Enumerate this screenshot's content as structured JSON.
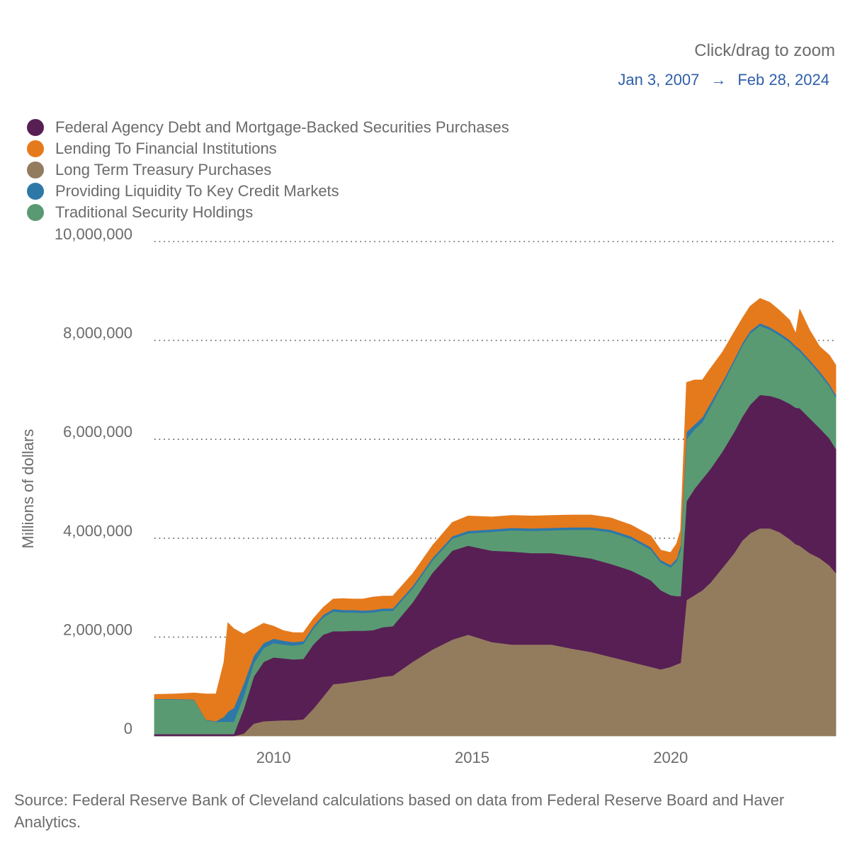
{
  "header": {
    "zoom_hint": "Click/drag to zoom",
    "range_start": "Jan 3, 2007",
    "range_arrow": "→",
    "range_end": "Feb 28, 2024"
  },
  "y_axis_title": "Millions of dollars",
  "source": "Source: Federal Reserve Bank of Cleveland calculations based on data from Federal Reserve Board and Haver Analytics.",
  "colors": {
    "agency_mbs": "#581f54",
    "lending": "#e57a1d",
    "treasury": "#937c5e",
    "liquidity": "#2e78a8",
    "traditional": "#5a9a72",
    "gridline": "#555555",
    "axis_text": "#6b6b6b",
    "range_text": "#2f5fa7"
  },
  "chart_data": {
    "type": "area",
    "stacked": true,
    "title": "",
    "xlabel": "",
    "ylabel": "Millions of dollars",
    "xlim": [
      2007.0,
      2024.16
    ],
    "ylim": [
      0,
      10000000
    ],
    "x_ticks": [
      2010,
      2015,
      2020
    ],
    "x_tick_labels": [
      "2010",
      "2015",
      "2020"
    ],
    "y_ticks": [
      0,
      2000000,
      4000000,
      6000000,
      8000000,
      10000000
    ],
    "y_tick_labels": [
      "0",
      "2,000,000",
      "4,000,000",
      "6,000,000",
      "8,000,000",
      "10,000,000"
    ],
    "grid": "horizontal dotted",
    "legend_position": "top-left",
    "stack_order": [
      "Long Term Treasury Purchases",
      "Federal Agency Debt and Mortgage-Backed Securities Purchases",
      "Traditional Security Holdings",
      "Providing Liquidity To Key Credit Markets",
      "Lending To Financial Institutions"
    ],
    "legend": [
      {
        "name": "Federal Agency Debt and Mortgage-Backed Securities Purchases",
        "color": "#581f54"
      },
      {
        "name": "Lending To Financial Institutions",
        "color": "#e57a1d"
      },
      {
        "name": "Long Term Treasury Purchases",
        "color": "#937c5e"
      },
      {
        "name": "Providing Liquidity To Key Credit Markets",
        "color": "#2e78a8"
      },
      {
        "name": "Traditional Security Holdings",
        "color": "#5a9a72"
      }
    ],
    "x": [
      2007.0,
      2007.5,
      2008.0,
      2008.3,
      2008.55,
      2008.75,
      2008.85,
      2009.0,
      2009.25,
      2009.5,
      2009.75,
      2010.0,
      2010.25,
      2010.5,
      2010.75,
      2011.0,
      2011.25,
      2011.5,
      2011.75,
      2012.0,
      2012.25,
      2012.5,
      2012.75,
      2013.0,
      2013.5,
      2014.0,
      2014.5,
      2014.9,
      2015.5,
      2016.0,
      2016.5,
      2017.0,
      2017.5,
      2018.0,
      2018.5,
      2019.0,
      2019.5,
      2019.75,
      2020.0,
      2020.15,
      2020.25,
      2020.4,
      2020.6,
      2020.8,
      2021.0,
      2021.3,
      2021.6,
      2021.8,
      2022.0,
      2022.25,
      2022.5,
      2022.75,
      2023.0,
      2023.15,
      2023.25,
      2023.5,
      2023.75,
      2024.0,
      2024.16
    ],
    "series": [
      {
        "name": "Long Term Treasury Purchases",
        "values": [
          0,
          0,
          0,
          0,
          0,
          0,
          0,
          0,
          50000,
          250000,
          300000,
          310000,
          320000,
          320000,
          340000,
          550000,
          800000,
          1050000,
          1070000,
          1100000,
          1130000,
          1160000,
          1200000,
          1220000,
          1500000,
          1750000,
          1950000,
          2050000,
          1900000,
          1850000,
          1850000,
          1850000,
          1770000,
          1700000,
          1600000,
          1500000,
          1400000,
          1350000,
          1400000,
          1450000,
          1480000,
          2750000,
          2850000,
          2950000,
          3100000,
          3400000,
          3700000,
          3950000,
          4100000,
          4200000,
          4200000,
          4120000,
          3980000,
          3880000,
          3850000,
          3700000,
          3600000,
          3450000,
          3300000
        ]
      },
      {
        "name": "Federal Agency Debt and Mortgage-Backed Securities Purchases",
        "values": [
          40000,
          40000,
          40000,
          40000,
          40000,
          40000,
          40000,
          40000,
          500000,
          950000,
          1200000,
          1280000,
          1250000,
          1230000,
          1220000,
          1300000,
          1250000,
          1070000,
          1050000,
          1030000,
          1000000,
          980000,
          1000000,
          1000000,
          1200000,
          1550000,
          1800000,
          1800000,
          1850000,
          1880000,
          1850000,
          1850000,
          1880000,
          1890000,
          1880000,
          1850000,
          1750000,
          1600000,
          1450000,
          1380000,
          1350000,
          2000000,
          2150000,
          2250000,
          2300000,
          2350000,
          2450000,
          2500000,
          2600000,
          2700000,
          2680000,
          2700000,
          2740000,
          2760000,
          2780000,
          2730000,
          2630000,
          2570000,
          2510000
        ]
      },
      {
        "name": "Traditional Security Holdings",
        "values": [
          700000,
          700000,
          690000,
          280000,
          250000,
          250000,
          250000,
          250000,
          260000,
          270000,
          280000,
          290000,
          280000,
          280000,
          300000,
          320000,
          350000,
          400000,
          380000,
          370000,
          360000,
          360000,
          330000,
          310000,
          280000,
          250000,
          240000,
          250000,
          380000,
          430000,
          450000,
          460000,
          520000,
          580000,
          640000,
          640000,
          620000,
          560000,
          560000,
          700000,
          930000,
          1250000,
          1200000,
          1150000,
          1250000,
          1350000,
          1420000,
          1440000,
          1440000,
          1400000,
          1340000,
          1280000,
          1240000,
          1200000,
          1150000,
          1130000,
          1100000,
          1050000,
          1040000
        ]
      },
      {
        "name": "Providing Liquidity To Key Credit Markets",
        "values": [
          10000,
          10000,
          10000,
          10000,
          10000,
          100000,
          200000,
          280000,
          250000,
          150000,
          100000,
          90000,
          80000,
          70000,
          60000,
          50000,
          50000,
          50000,
          50000,
          50000,
          50000,
          50000,
          50000,
          50000,
          50000,
          50000,
          50000,
          50000,
          50000,
          50000,
          50000,
          50000,
          50000,
          50000,
          50000,
          50000,
          50000,
          50000,
          50000,
          60000,
          100000,
          150000,
          100000,
          100000,
          80000,
          60000,
          50000,
          50000,
          50000,
          50000,
          50000,
          50000,
          50000,
          50000,
          50000,
          50000,
          50000,
          50000,
          50000
        ]
      },
      {
        "name": "Lending To Financial Institutions",
        "values": [
          90000,
          100000,
          130000,
          520000,
          550000,
          1100000,
          1800000,
          1600000,
          1000000,
          550000,
          400000,
          250000,
          200000,
          190000,
          170000,
          150000,
          150000,
          200000,
          230000,
          220000,
          230000,
          260000,
          250000,
          250000,
          250000,
          250000,
          280000,
          300000,
          250000,
          250000,
          250000,
          250000,
          250000,
          250000,
          240000,
          230000,
          230000,
          200000,
          250000,
          300000,
          300000,
          1000000,
          900000,
          750000,
          700000,
          600000,
          550000,
          500000,
          500000,
          500000,
          500000,
          450000,
          400000,
          250000,
          800000,
          600000,
          500000,
          580000,
          600000
        ]
      }
    ]
  }
}
